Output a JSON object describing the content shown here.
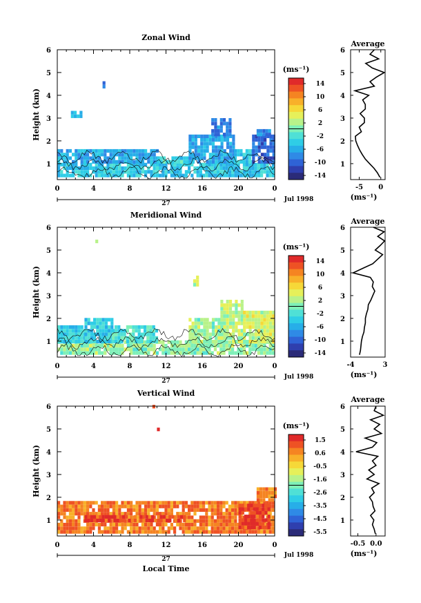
{
  "colors": {
    "scale": [
      "#2b2b78",
      "#2f3fae",
      "#2f63d6",
      "#2f8ae6",
      "#27aee8",
      "#2fcde6",
      "#4fe0d6",
      "#7ef0b8",
      "#b8f28a",
      "#e6f05a",
      "#f6d838",
      "#f8b02a",
      "#f58422",
      "#ee5224",
      "#e02a2a"
    ],
    "line": "#000000"
  },
  "common": {
    "x_ticks": [
      "0",
      "4",
      "8",
      "12",
      "16",
      "20",
      "0"
    ],
    "date_day": "27",
    "date_label": "Jul 1998",
    "unit_label": "(ms⁻¹)",
    "average_title": "Average",
    "x_title": "Local Time"
  },
  "chart_data": [
    {
      "type": "heatmap",
      "title": "Zonal Wind",
      "ylabel": "Height (km)",
      "xlim": [
        0,
        24
      ],
      "ylim": [
        0.3,
        6
      ],
      "y_ticks": [
        "1",
        "2",
        "3",
        "4",
        "5",
        "6"
      ],
      "colorbar": {
        "unit": "(ms⁻¹)",
        "ticks": [
          "14",
          "10",
          "6",
          "2",
          "-2",
          "-6",
          "-10",
          "-14"
        ],
        "range": [
          -14,
          14
        ]
      },
      "regions": [
        {
          "t0": 0,
          "t1": 24,
          "h0": 0.4,
          "h1": 1.0,
          "value": -4
        },
        {
          "t0": 0,
          "t1": 11,
          "h0": 1.0,
          "h1": 1.6,
          "value": -6
        },
        {
          "t0": 11,
          "t1": 15,
          "h0": 1.0,
          "h1": 1.3,
          "value": -3
        },
        {
          "t0": 14.5,
          "t1": 19.5,
          "h0": 1.0,
          "h1": 2.2,
          "value": -6
        },
        {
          "t0": 17,
          "t1": 19,
          "h0": 2.2,
          "h1": 2.9,
          "value": -8
        },
        {
          "t0": 19.5,
          "t1": 21.5,
          "h0": 1.0,
          "h1": 1.6,
          "value": -4
        },
        {
          "t0": 21.5,
          "t1": 24,
          "h0": 1.0,
          "h1": 2.2,
          "value": -9
        },
        {
          "t0": 22,
          "t1": 23.5,
          "h0": 2.2,
          "h1": 2.4,
          "value": -7
        },
        {
          "t0": 1.5,
          "t1": 2.5,
          "h0": 3.0,
          "h1": 3.3,
          "value": -5
        },
        {
          "t0": 5.0,
          "t1": 5.3,
          "h0": 4.3,
          "h1": 4.5,
          "value": -8
        }
      ],
      "profile": {
        "xlim": [
          -7,
          1
        ],
        "x_ticks": [
          "-5",
          "0"
        ],
        "x_tick_values": [
          -5,
          0
        ],
        "heights": [
          0.4,
          0.6,
          0.8,
          1.0,
          1.2,
          1.4,
          1.6,
          1.8,
          2.0,
          2.2,
          2.4,
          2.6,
          2.8,
          3.0,
          3.2,
          3.4,
          3.6,
          3.8,
          4.0,
          4.2,
          4.4,
          4.6,
          4.8,
          5.0,
          5.2,
          5.4,
          5.6,
          5.8,
          6.0
        ],
        "values": [
          -0.2,
          -0.8,
          -1.6,
          -2.6,
          -3.6,
          -4.3,
          -4.9,
          -5.4,
          -5.8,
          -5.9,
          -4.5,
          -5.0,
          -3.8,
          -3.8,
          -4.8,
          -3.6,
          -3.6,
          -4.2,
          -2.8,
          -6.0,
          -1.5,
          -2.5,
          -1.0,
          0.8,
          -2.0,
          -3.5,
          -0.5,
          -2.5,
          -1.5
        ]
      }
    },
    {
      "type": "heatmap",
      "title": "Meridional Wind",
      "ylabel": "Height (km)",
      "xlim": [
        0,
        24
      ],
      "ylim": [
        0.3,
        6
      ],
      "y_ticks": [
        "1",
        "2",
        "3",
        "4",
        "5",
        "6"
      ],
      "colorbar": {
        "unit": "(ms⁻¹)",
        "ticks": [
          "14",
          "10",
          "6",
          "2",
          "-2",
          "-6",
          "-10",
          "-14"
        ],
        "range": [
          -14,
          14
        ]
      },
      "regions": [
        {
          "t0": 0,
          "t1": 24,
          "h0": 0.4,
          "h1": 0.9,
          "value": 1
        },
        {
          "t0": 0,
          "t1": 3,
          "h0": 0.9,
          "h1": 1.6,
          "value": -3
        },
        {
          "t0": 3,
          "t1": 6,
          "h0": 0.9,
          "h1": 2.0,
          "value": -4
        },
        {
          "t0": 6,
          "t1": 11,
          "h0": 0.9,
          "h1": 1.6,
          "value": -2
        },
        {
          "t0": 14.5,
          "t1": 18,
          "h0": 0.9,
          "h1": 2.0,
          "value": 1
        },
        {
          "t0": 18,
          "t1": 20.5,
          "h0": 0.9,
          "h1": 2.7,
          "value": 2
        },
        {
          "t0": 20.5,
          "t1": 24,
          "h0": 0.9,
          "h1": 2.3,
          "value": 3
        },
        {
          "t0": 15,
          "t1": 15.5,
          "h0": 3.4,
          "h1": 3.8,
          "value": 3
        },
        {
          "t0": 4.2,
          "t1": 4.5,
          "h0": 5.3,
          "h1": 5.4,
          "value": 2
        }
      ],
      "profile": {
        "xlim": [
          -4,
          3
        ],
        "x_ticks": [
          "-4",
          "3"
        ],
        "x_tick_values": [
          -4,
          3
        ],
        "heights": [
          0.4,
          0.6,
          0.8,
          1.0,
          1.2,
          1.4,
          1.6,
          1.8,
          2.0,
          2.2,
          2.4,
          2.6,
          2.8,
          3.0,
          3.2,
          3.4,
          3.6,
          3.8,
          4.0,
          4.2,
          4.4,
          4.6,
          4.8,
          5.0,
          5.2,
          5.4,
          5.6,
          5.8,
          6.0
        ],
        "values": [
          -2.2,
          -2.0,
          -1.9,
          -1.8,
          -1.6,
          -1.3,
          -1.2,
          -1.0,
          -1.0,
          -0.8,
          -0.5,
          -0.4,
          0.1,
          0.5,
          0.9,
          0.4,
          0.6,
          0.0,
          -3.5,
          -1.5,
          0.5,
          1.5,
          2.5,
          1.0,
          2.0,
          2.9,
          1.5,
          2.8,
          0.6
        ]
      }
    },
    {
      "type": "heatmap",
      "title": "Vertical Wind",
      "ylabel": "Height (km)",
      "xlabel": "Local Time",
      "xlim": [
        0,
        24
      ],
      "ylim": [
        0.3,
        6
      ],
      "y_ticks": [
        "1",
        "2",
        "3",
        "4",
        "5",
        "6"
      ],
      "colorbar": {
        "unit": "(ms⁻¹)",
        "ticks": [
          "1.5",
          "0.6",
          "-0.5",
          "-1.6",
          "-2.6",
          "-3.5",
          "-4.5",
          "-5.5"
        ],
        "range": [
          -6,
          2
        ]
      },
      "regions": [
        {
          "t0": 0,
          "t1": 24,
          "h0": 0.4,
          "h1": 1.8,
          "value": 0.8
        },
        {
          "t0": 3,
          "t1": 14,
          "h0": 0.9,
          "h1": 1.2,
          "value": 1.4
        },
        {
          "t0": 20,
          "t1": 23.5,
          "h0": 0.6,
          "h1": 1.7,
          "value": 1.5
        },
        {
          "t0": 22,
          "t1": 24,
          "h0": 1.8,
          "h1": 2.4,
          "value": 0.6
        },
        {
          "t0": 10.5,
          "t1": 10.8,
          "h0": 5.9,
          "h1": 6.0,
          "value": 1.2
        },
        {
          "t0": 11,
          "t1": 11.3,
          "h0": 4.9,
          "h1": 5.0,
          "value": 1.0
        }
      ],
      "profile": {
        "xlim": [
          -0.7,
          0.25
        ],
        "x_ticks": [
          "-0.5",
          "0.0"
        ],
        "x_tick_values": [
          -0.5,
          0.0
        ],
        "heights": [
          0.4,
          0.6,
          0.8,
          1.0,
          1.2,
          1.4,
          1.6,
          1.8,
          2.0,
          2.2,
          2.4,
          2.6,
          2.8,
          3.0,
          3.2,
          3.4,
          3.6,
          3.8,
          4.0,
          4.2,
          4.4,
          4.6,
          4.8,
          5.0,
          5.2,
          5.4,
          5.6,
          5.8,
          6.0
        ],
        "values": [
          -0.02,
          -0.05,
          -0.1,
          -0.06,
          -0.15,
          -0.03,
          -0.08,
          -0.1,
          -0.18,
          -0.05,
          -0.12,
          0.08,
          -0.25,
          -0.05,
          -0.2,
          0.0,
          -0.1,
          0.05,
          -0.55,
          -0.1,
          0.02,
          -0.3,
          0.15,
          -0.05,
          0.1,
          -0.15,
          0.2,
          -0.05,
          0.0
        ]
      }
    }
  ]
}
